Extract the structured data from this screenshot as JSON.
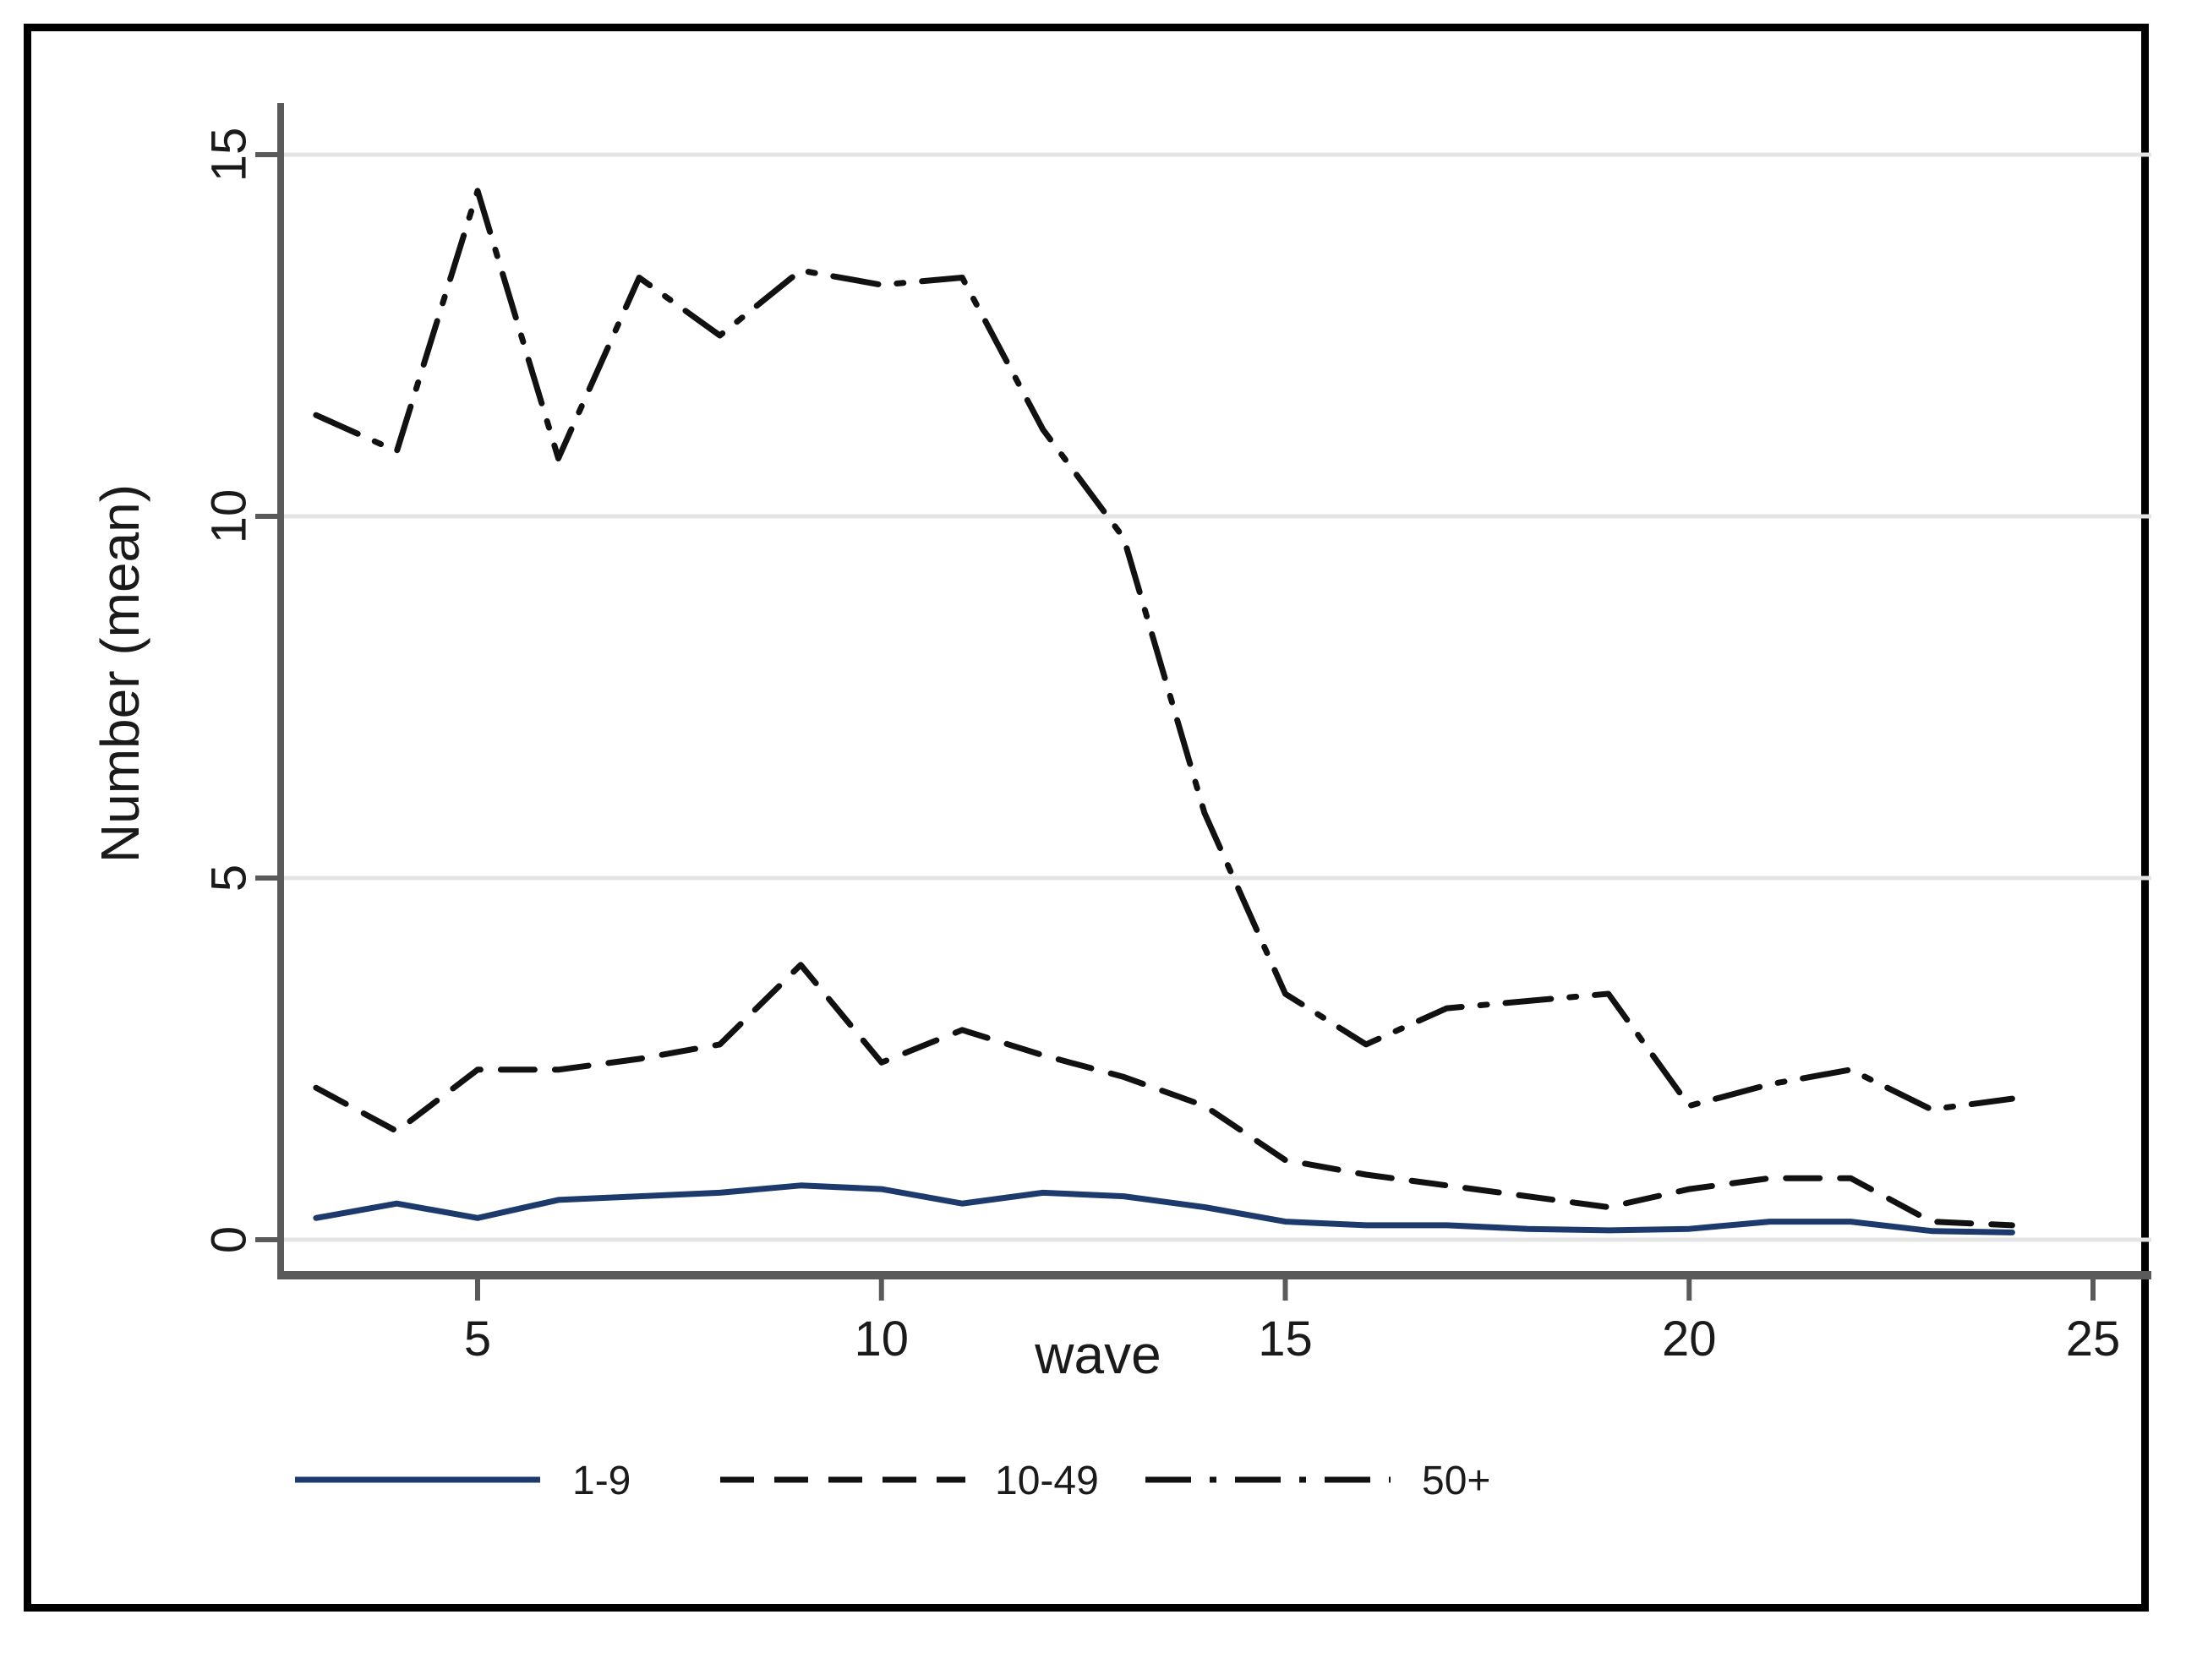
{
  "chart_data": {
    "type": "line",
    "x": [
      3,
      4,
      5,
      6,
      7,
      8,
      9,
      10,
      11,
      12,
      13,
      14,
      15,
      16,
      17,
      18,
      19,
      20,
      21,
      22,
      23,
      24
    ],
    "series": [
      {
        "name": "1-9",
        "style": "solid",
        "color": "#1c3a6b",
        "values": [
          0.3,
          0.5,
          0.3,
          0.55,
          0.6,
          0.65,
          0.75,
          0.7,
          0.5,
          0.65,
          0.6,
          0.45,
          0.25,
          0.2,
          0.2,
          0.15,
          0.13,
          0.15,
          0.25,
          0.25,
          0.12,
          0.1
        ]
      },
      {
        "name": "10-49",
        "style": "dashed",
        "color": "#111111",
        "values": [
          2.1,
          1.5,
          2.35,
          2.35,
          2.5,
          2.7,
          3.8,
          2.45,
          2.9,
          2.55,
          2.25,
          1.85,
          1.1,
          0.9,
          0.75,
          0.6,
          0.45,
          0.7,
          0.85,
          0.85,
          0.25,
          0.2
        ]
      },
      {
        "name": "50+",
        "style": "dash-dot",
        "color": "#111111",
        "values": [
          11.4,
          10.9,
          14.5,
          10.8,
          13.3,
          12.5,
          13.4,
          13.2,
          13.3,
          11.2,
          9.7,
          5.9,
          3.4,
          2.7,
          3.2,
          3.3,
          3.4,
          1.85,
          2.15,
          2.35,
          1.8,
          1.95
        ]
      }
    ],
    "title": "",
    "xlabel": "wave",
    "ylabel": "Number (mean)",
    "xticks": [
      5,
      10,
      15,
      20,
      25
    ],
    "yticks": [
      0,
      5,
      10,
      15
    ],
    "xlim": [
      2.5,
      25.8
    ],
    "ylim": [
      -0.5,
      15.7
    ],
    "grid": "horizontal",
    "legend_position": "bottom",
    "colors": {
      "axis_line": "#5a5a5a",
      "gridline": "#e4e4e4",
      "text": "#1a1a1a",
      "background": "#ffffff",
      "frame_border": "#000000"
    }
  }
}
